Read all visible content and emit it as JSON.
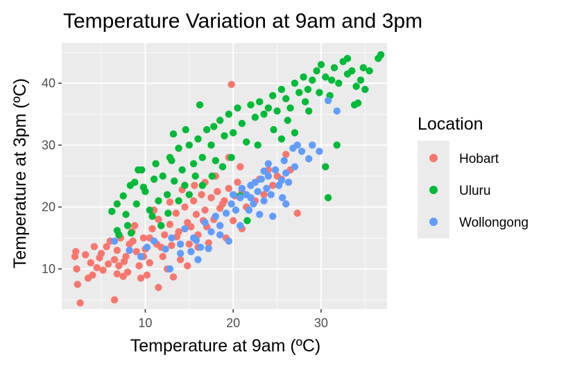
{
  "chart_data": {
    "type": "scatter",
    "title": "Temperature Variation at 9am and 3pm",
    "xlabel": "Temperature at 9am (ºC)",
    "ylabel": "Temperature at 3pm (ºC)",
    "xlim": [
      0.5,
      37.5
    ],
    "ylim": [
      3.5,
      46.5
    ],
    "xticks": [
      10,
      20,
      30
    ],
    "yticks": [
      10,
      20,
      30,
      40
    ],
    "xtick_labels": [
      "10",
      "20",
      "30"
    ],
    "ytick_labels": [
      "10",
      "20",
      "30",
      "40"
    ],
    "grid": true,
    "legend": {
      "title": "Location",
      "position": "right"
    },
    "series": [
      {
        "name": "Hobart",
        "color": "#F8766D",
        "points": [
          [
            2.6,
            4.5
          ],
          [
            2.3,
            7.5
          ],
          [
            2.2,
            10.0
          ],
          [
            2.0,
            12.0
          ],
          [
            2.1,
            12.8
          ],
          [
            3.2,
            12.3
          ],
          [
            3.8,
            11.0
          ],
          [
            4.5,
            10.2
          ],
          [
            4.0,
            9.0
          ],
          [
            5.0,
            12.5
          ],
          [
            5.6,
            13.6
          ],
          [
            6.0,
            14.5
          ],
          [
            6.5,
            11.5
          ],
          [
            6.8,
            13.0
          ],
          [
            7.0,
            10.5
          ],
          [
            7.5,
            8.8
          ],
          [
            7.8,
            12.0
          ],
          [
            8.2,
            14.0
          ],
          [
            8.5,
            16.0
          ],
          [
            9.0,
            12.8
          ],
          [
            9.3,
            10.5
          ],
          [
            9.8,
            15.0
          ],
          [
            10.0,
            13.2
          ],
          [
            10.5,
            11.0
          ],
          [
            10.8,
            16.5
          ],
          [
            11.3,
            14.0
          ],
          [
            11.5,
            18.0
          ],
          [
            12.0,
            12.0
          ],
          [
            12.2,
            15.5
          ],
          [
            12.8,
            17.2
          ],
          [
            13.0,
            13.8
          ],
          [
            13.5,
            19.0
          ],
          [
            13.8,
            16.0
          ],
          [
            14.0,
            11.5
          ],
          [
            14.5,
            20.0
          ],
          [
            14.8,
            17.5
          ],
          [
            15.0,
            14.0
          ],
          [
            15.5,
            21.0
          ],
          [
            15.8,
            18.8
          ],
          [
            16.0,
            15.5
          ],
          [
            16.4,
            22.0
          ],
          [
            16.8,
            19.5
          ],
          [
            17.0,
            16.8
          ],
          [
            17.5,
            21.5
          ],
          [
            17.8,
            18.0
          ],
          [
            18.2,
            22.5
          ],
          [
            18.5,
            19.8
          ],
          [
            19.0,
            21.0
          ],
          [
            19.5,
            23.0
          ],
          [
            19.8,
            39.8
          ],
          [
            20.2,
            21.8
          ],
          [
            20.5,
            24.0
          ],
          [
            21.0,
            22.5
          ],
          [
            21.5,
            20.0
          ],
          [
            22.0,
            23.5
          ],
          [
            22.5,
            21.0
          ],
          [
            23.0,
            24.5
          ],
          [
            23.5,
            22.0
          ],
          [
            24.0,
            26.0
          ],
          [
            24.5,
            23.5
          ],
          [
            25.0,
            25.0
          ],
          [
            25.5,
            24.5
          ],
          [
            26.0,
            28.5
          ],
          [
            26.5,
            26.0
          ],
          [
            27.3,
            19.0
          ],
          [
            11.5,
            7.0
          ],
          [
            6.5,
            5.0
          ],
          [
            8.0,
            9.5
          ],
          [
            9.5,
            8.5
          ],
          [
            10.2,
            9.0
          ],
          [
            12.5,
            10.0
          ],
          [
            13.2,
            8.7
          ],
          [
            14.8,
            10.5
          ],
          [
            16.0,
            13.5
          ],
          [
            17.2,
            14.2
          ],
          [
            18.5,
            17.0
          ],
          [
            19.2,
            15.0
          ],
          [
            20.0,
            17.8
          ],
          [
            21.0,
            16.5
          ],
          [
            5.2,
            9.8
          ],
          [
            4.2,
            13.6
          ],
          [
            3.5,
            8.5
          ],
          [
            7.2,
            15.0
          ],
          [
            8.8,
            17.0
          ],
          [
            11.0,
            19.5
          ],
          [
            12.8,
            20.8
          ],
          [
            14.2,
            22.8
          ],
          [
            15.6,
            23.5
          ],
          [
            16.8,
            24.0
          ],
          [
            18.0,
            25.0
          ],
          [
            19.5,
            28.0
          ],
          [
            20.8,
            26.5
          ],
          [
            6.8,
            9.2
          ],
          [
            9.8,
            12.0
          ],
          [
            11.8,
            13.5
          ],
          [
            13.6,
            15.2
          ],
          [
            15.2,
            16.8
          ],
          [
            16.6,
            17.8
          ],
          [
            18.8,
            20.5
          ],
          [
            10.5,
            15.0
          ],
          [
            7.6,
            11.2
          ],
          [
            8.6,
            14.5
          ],
          [
            4.8,
            11.8
          ],
          [
            5.8,
            10.8
          ]
        ]
      },
      {
        "name": "Uluru",
        "color": "#00BA38",
        "points": [
          [
            6.2,
            19.3
          ],
          [
            6.8,
            20.5
          ],
          [
            7.0,
            15.5
          ],
          [
            7.5,
            21.8
          ],
          [
            8.0,
            17.0
          ],
          [
            8.3,
            23.5
          ],
          [
            8.8,
            24.0
          ],
          [
            9.2,
            26.0
          ],
          [
            9.6,
            26.0
          ],
          [
            10.0,
            22.5
          ],
          [
            10.5,
            19.5
          ],
          [
            11.0,
            24.5
          ],
          [
            11.2,
            27.0
          ],
          [
            11.5,
            21.0
          ],
          [
            12.0,
            25.0
          ],
          [
            12.5,
            22.0
          ],
          [
            13.0,
            27.5
          ],
          [
            13.3,
            24.2
          ],
          [
            13.8,
            29.5
          ],
          [
            14.2,
            26.0
          ],
          [
            14.5,
            23.5
          ],
          [
            15.0,
            30.0
          ],
          [
            15.5,
            27.0
          ],
          [
            15.7,
            25.0
          ],
          [
            16.0,
            31.0
          ],
          [
            16.5,
            28.0
          ],
          [
            17.0,
            32.5
          ],
          [
            17.5,
            30.0
          ],
          [
            17.8,
            33.0
          ],
          [
            18.0,
            27.5
          ],
          [
            18.5,
            34.0
          ],
          [
            19.0,
            31.5
          ],
          [
            19.5,
            35.0
          ],
          [
            20.0,
            32.0
          ],
          [
            20.5,
            36.0
          ],
          [
            21.0,
            33.5
          ],
          [
            21.5,
            30.5
          ],
          [
            22.0,
            36.5
          ],
          [
            22.5,
            34.5
          ],
          [
            23.0,
            37.0
          ],
          [
            23.5,
            35.0
          ],
          [
            24.0,
            36.0
          ],
          [
            24.5,
            38.0
          ],
          [
            25.0,
            35.5
          ],
          [
            25.5,
            39.0
          ],
          [
            26.0,
            37.5
          ],
          [
            26.5,
            36.0
          ],
          [
            27.0,
            40.0
          ],
          [
            27.5,
            38.5
          ],
          [
            28.0,
            41.0
          ],
          [
            28.5,
            39.0
          ],
          [
            29.0,
            40.5
          ],
          [
            29.5,
            42.0
          ],
          [
            30.0,
            43.0
          ],
          [
            30.5,
            41.0
          ],
          [
            31.0,
            38.0
          ],
          [
            31.5,
            42.5
          ],
          [
            32.0,
            40.0
          ],
          [
            32.5,
            43.5
          ],
          [
            33.0,
            41.5
          ],
          [
            33.5,
            42.0
          ],
          [
            34.0,
            39.5
          ],
          [
            34.5,
            40.5
          ],
          [
            35.0,
            39.0
          ],
          [
            35.5,
            42.0
          ],
          [
            36.5,
            44.0
          ],
          [
            36.8,
            44.6
          ],
          [
            30.5,
            26.5
          ],
          [
            30.8,
            21.5
          ],
          [
            31.8,
            30.0
          ],
          [
            33.8,
            36.5
          ],
          [
            34.2,
            36.8
          ],
          [
            28.6,
            35.5
          ],
          [
            27.0,
            32.0
          ],
          [
            25.5,
            31.0
          ],
          [
            20.8,
            21.8
          ],
          [
            21.6,
            17.8
          ],
          [
            13.2,
            31.8
          ],
          [
            16.2,
            36.5
          ],
          [
            12.8,
            28.0
          ],
          [
            14.6,
            32.5
          ],
          [
            9.0,
            20.5
          ],
          [
            10.8,
            18.5
          ],
          [
            11.8,
            17.0
          ],
          [
            12.6,
            19.0
          ],
          [
            13.8,
            21.0
          ],
          [
            15.0,
            22.0
          ],
          [
            16.5,
            23.5
          ],
          [
            17.6,
            25.0
          ],
          [
            18.8,
            26.5
          ],
          [
            19.8,
            28.0
          ],
          [
            22.8,
            30.0
          ],
          [
            24.6,
            32.5
          ],
          [
            26.2,
            34.0
          ],
          [
            28.2,
            37.0
          ],
          [
            29.8,
            38.5
          ],
          [
            31.2,
            40.5
          ],
          [
            33.0,
            44.0
          ],
          [
            34.8,
            42.5
          ],
          [
            8.4,
            15.8
          ],
          [
            7.8,
            18.8
          ],
          [
            6.8,
            16.2
          ],
          [
            9.8,
            23.2
          ]
        ]
      },
      {
        "name": "Wollongong",
        "color": "#619CFF",
        "points": [
          [
            6.5,
            14.5
          ],
          [
            8.2,
            13.0
          ],
          [
            9.5,
            12.0
          ],
          [
            10.2,
            13.5
          ],
          [
            11.0,
            14.5
          ],
          [
            12.3,
            13.2
          ],
          [
            13.0,
            15.0
          ],
          [
            14.0,
            14.0
          ],
          [
            14.5,
            16.5
          ],
          [
            15.2,
            12.8
          ],
          [
            15.8,
            14.6
          ],
          [
            16.3,
            13.5
          ],
          [
            16.8,
            17.5
          ],
          [
            17.5,
            16.0
          ],
          [
            18.0,
            18.5
          ],
          [
            18.5,
            17.0
          ],
          [
            19.2,
            19.0
          ],
          [
            19.8,
            20.5
          ],
          [
            20.3,
            19.5
          ],
          [
            20.8,
            21.5
          ],
          [
            21.5,
            22.0
          ],
          [
            22.0,
            23.5
          ],
          [
            22.3,
            20.5
          ],
          [
            22.8,
            22.5
          ],
          [
            23.2,
            24.5
          ],
          [
            23.5,
            21.0
          ],
          [
            23.8,
            23.0
          ],
          [
            24.0,
            25.0
          ],
          [
            24.3,
            22.0
          ],
          [
            24.8,
            26.0
          ],
          [
            25.2,
            23.5
          ],
          [
            25.6,
            21.5
          ],
          [
            26.0,
            25.5
          ],
          [
            26.3,
            24.0
          ],
          [
            26.8,
            29.5
          ],
          [
            27.3,
            30.0
          ],
          [
            27.8,
            29.0
          ],
          [
            29.0,
            30.0
          ],
          [
            29.8,
            29.0
          ],
          [
            28.6,
            27.8
          ],
          [
            25.5,
            24.3
          ],
          [
            24.5,
            18.5
          ],
          [
            26.0,
            20.5
          ],
          [
            27.0,
            26.5
          ],
          [
            23.0,
            18.8
          ],
          [
            21.8,
            19.5
          ],
          [
            20.8,
            17.0
          ],
          [
            19.5,
            14.5
          ],
          [
            17.2,
            13.3
          ],
          [
            16.0,
            11.5
          ],
          [
            12.8,
            10.0
          ],
          [
            30.8,
            37.2
          ],
          [
            31.8,
            35.5
          ],
          [
            22.5,
            24.0
          ],
          [
            21.0,
            23.0
          ],
          [
            20.0,
            22.0
          ],
          [
            24.0,
            27.0
          ],
          [
            25.8,
            27.5
          ],
          [
            18.5,
            15.5
          ],
          [
            15.5,
            15.0
          ],
          [
            14.0,
            12.5
          ],
          [
            22.0,
            21.5
          ],
          [
            23.5,
            25.8
          ]
        ]
      }
    ]
  }
}
